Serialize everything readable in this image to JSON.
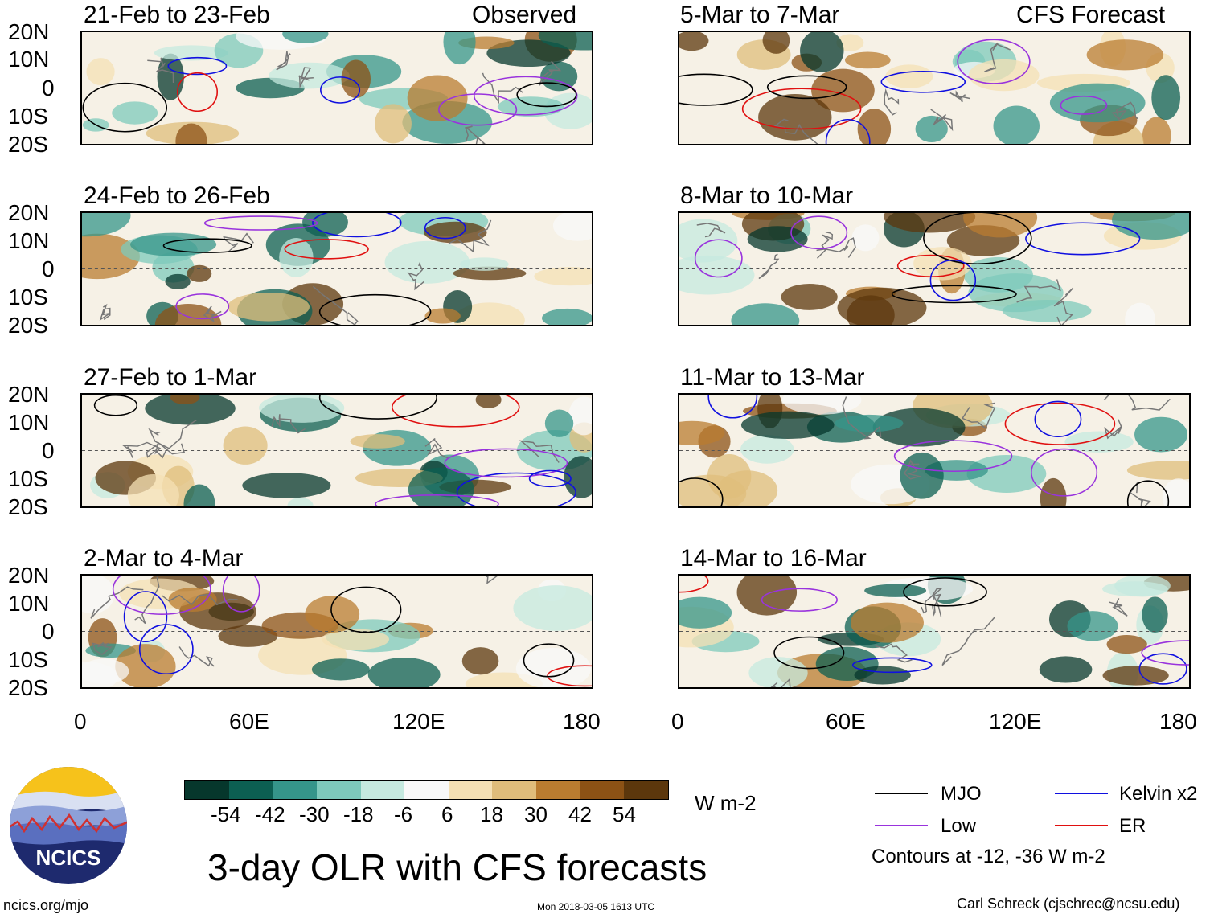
{
  "header": {
    "observed_label": "Observed",
    "forecast_label": "CFS Forecast"
  },
  "lat_labels": [
    "20N",
    "10N",
    "0",
    "10S",
    "20S"
  ],
  "lon_labels": [
    "0",
    "60E",
    "120E",
    "180"
  ],
  "panels": [
    {
      "title": "21-Feb to 23-Feb"
    },
    {
      "title": "24-Feb to 26-Feb"
    },
    {
      "title": "27-Feb to 1-Mar"
    },
    {
      "title": "2-Mar to 4-Mar"
    },
    {
      "title": "5-Mar to 7-Mar"
    },
    {
      "title": "8-Mar to 10-Mar"
    },
    {
      "title": "11-Mar to 13-Mar"
    },
    {
      "title": "14-Mar to 16-Mar"
    }
  ],
  "colorbar": {
    "colors": [
      "#06372c",
      "#0c5f52",
      "#35958a",
      "#7ec9bb",
      "#c5e9df",
      "#f8f8f8",
      "#f4e0b4",
      "#dfbd7b",
      "#b97c30",
      "#8c5215",
      "#5c370c"
    ],
    "labels": [
      "-54",
      "-42",
      "-30",
      "-18",
      "-6",
      "6",
      "18",
      "30",
      "42",
      "54"
    ],
    "units": "W m-2"
  },
  "legend": {
    "items": [
      {
        "label": "MJO",
        "color": "#000000"
      },
      {
        "label": "Kelvin x2",
        "color": "#1010e0"
      },
      {
        "label": "Low",
        "color": "#9933dd"
      },
      {
        "label": "ER",
        "color": "#e01010"
      }
    ],
    "note": "Contours at -12, -36 W m-2"
  },
  "logo": {
    "text": "NCICS"
  },
  "footer": {
    "title": "3-day OLR with CFS forecasts",
    "url": "ncics.org/mjo",
    "timestamp": "Mon 2018-03-05 1613 UTC",
    "author": "Carl Schreck (cjschrec@ncsu.edu)"
  }
}
